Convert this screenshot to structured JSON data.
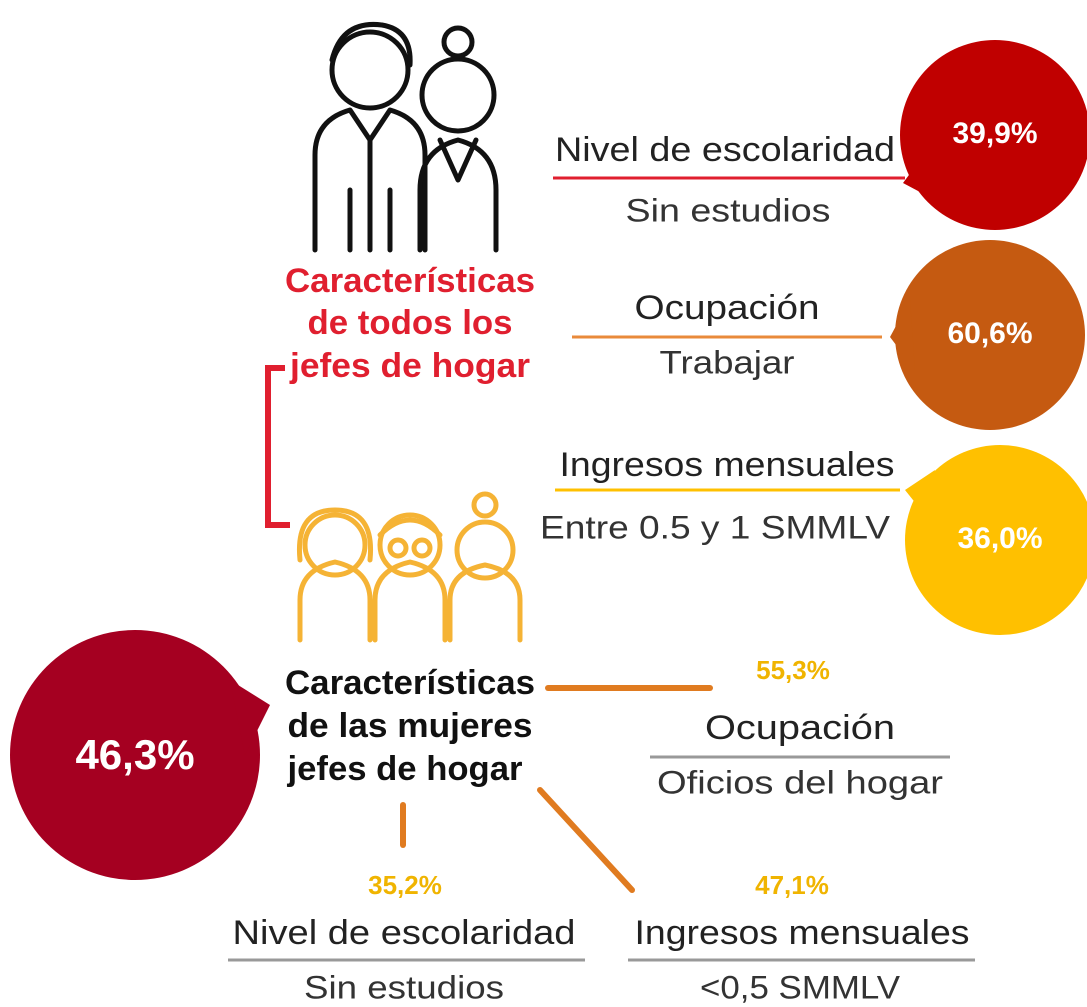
{
  "all_heads": {
    "title": [
      "Características",
      "de todos los",
      "jefes de hogar"
    ],
    "items": [
      {
        "label": "Nivel de escolaridad",
        "detail": "Sin estudios",
        "value": "39,9%"
      },
      {
        "label": "Ocupación",
        "detail": "Trabajar",
        "value": "60,6%"
      },
      {
        "label": "Ingresos mensuales",
        "detail": "Entre 0.5 y 1 SMMLV",
        "value": "36,0%"
      }
    ]
  },
  "women_heads": {
    "title": [
      "Características",
      "de las mujeres",
      "jefes de hogar"
    ],
    "share": "46,3%",
    "items": [
      {
        "value": "55,3%",
        "label": "Ocupación",
        "detail": "Oficios del hogar"
      },
      {
        "value": "35,2%",
        "label": "Nivel de escolaridad",
        "detail": "Sin estudios"
      },
      {
        "value": "47,1%",
        "label": "Ingresos mensuales",
        "detail": "<0,5 SMMLV"
      }
    ]
  }
}
